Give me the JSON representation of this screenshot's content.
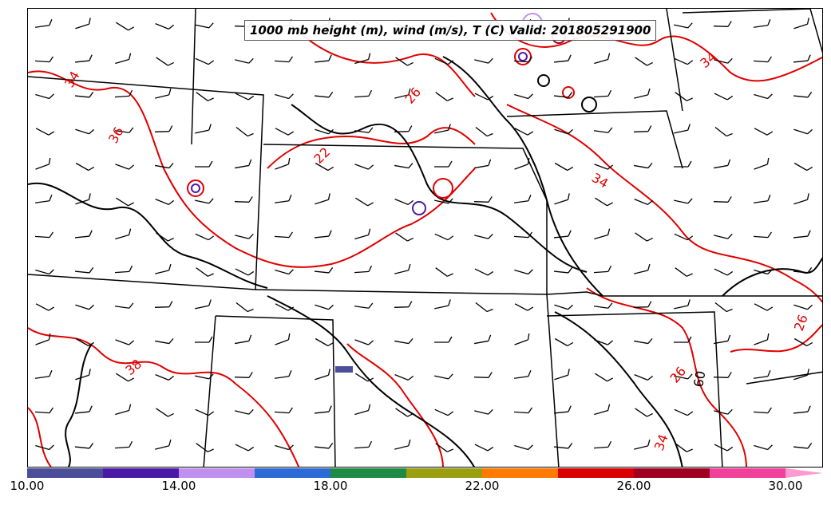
{
  "title": "1000 mb height (m), wind (m/s), T (C) Valid: 201805291900",
  "colors": {
    "temperature_contour": "#e00000",
    "height_contour": "#000000",
    "state_border": "#000000",
    "wind_barb": "#000000"
  },
  "colorbar": {
    "bins": [
      {
        "color": "#4b4f9a"
      },
      {
        "color": "#4a1aa6"
      },
      {
        "color": "#c090f0"
      },
      {
        "color": "#2c6ad6"
      },
      {
        "color": "#1f8a44"
      },
      {
        "color": "#9a9e0f"
      },
      {
        "color": "#ff7a00"
      },
      {
        "color": "#d80000"
      },
      {
        "color": "#a00020"
      },
      {
        "color": "#f0409a"
      }
    ],
    "extend_color": "#ff9ad0",
    "ticks": [
      "10.00",
      "14.00",
      "18.00",
      "22.00",
      "26.00",
      "30.00"
    ]
  },
  "temperature_labels": [
    {
      "text": "34",
      "value": 34
    },
    {
      "text": "36",
      "value": 36
    },
    {
      "text": "26",
      "value": 26
    },
    {
      "text": "22",
      "value": 22
    },
    {
      "text": "34",
      "value": 34
    },
    {
      "text": "38",
      "value": 38
    },
    {
      "text": "26",
      "value": 26
    },
    {
      "text": "34",
      "value": 34
    },
    {
      "text": "34",
      "value": 34
    },
    {
      "text": "26",
      "value": 26
    }
  ],
  "height_labels": [
    {
      "text": "60",
      "value": 60
    }
  ]
}
